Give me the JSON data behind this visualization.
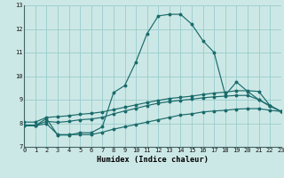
{
  "xlabel": "Humidex (Indice chaleur)",
  "bg_color": "#cce8e6",
  "grid_color": "#99cccc",
  "line_color": "#1a6b6b",
  "xlim": [
    0,
    23
  ],
  "ylim": [
    7,
    13
  ],
  "yticks": [
    7,
    8,
    9,
    10,
    11,
    12,
    13
  ],
  "xticks": [
    0,
    1,
    2,
    3,
    4,
    5,
    6,
    7,
    8,
    9,
    10,
    11,
    12,
    13,
    14,
    15,
    16,
    17,
    18,
    19,
    20,
    21,
    22,
    23
  ],
  "series": [
    {
      "x": [
        0,
        1,
        2,
        3,
        4,
        5,
        6,
        7,
        8,
        9,
        10,
        11,
        12,
        13,
        14,
        15,
        16,
        17,
        18,
        19,
        20,
        21,
        22,
        23
      ],
      "y": [
        7.9,
        7.9,
        8.2,
        7.5,
        7.5,
        7.6,
        7.6,
        7.85,
        9.3,
        9.6,
        10.6,
        11.8,
        12.55,
        12.62,
        12.62,
        12.2,
        11.5,
        11.0,
        9.2,
        9.75,
        9.35,
        9.0,
        8.75,
        8.5
      ]
    },
    {
      "x": [
        0,
        1,
        2,
        3,
        4,
        5,
        6,
        7,
        8,
        9,
        10,
        11,
        12,
        13,
        14,
        15,
        16,
        17,
        18,
        19,
        20,
        21,
        22,
        23
      ],
      "y": [
        8.05,
        8.05,
        8.25,
        8.28,
        8.32,
        8.38,
        8.42,
        8.48,
        8.58,
        8.68,
        8.78,
        8.88,
        8.97,
        9.05,
        9.1,
        9.15,
        9.22,
        9.28,
        9.32,
        9.38,
        9.38,
        9.35,
        8.75,
        8.5
      ]
    },
    {
      "x": [
        0,
        1,
        2,
        3,
        4,
        5,
        6,
        7,
        8,
        9,
        10,
        11,
        12,
        13,
        14,
        15,
        16,
        17,
        18,
        19,
        20,
        21,
        22,
        23
      ],
      "y": [
        7.92,
        7.92,
        8.08,
        8.04,
        8.08,
        8.15,
        8.18,
        8.25,
        8.4,
        8.52,
        8.63,
        8.75,
        8.85,
        8.92,
        8.97,
        9.02,
        9.08,
        9.12,
        9.15,
        9.18,
        9.18,
        9.0,
        8.72,
        8.5
      ]
    },
    {
      "x": [
        0,
        1,
        2,
        3,
        4,
        5,
        6,
        7,
        8,
        9,
        10,
        11,
        12,
        13,
        14,
        15,
        16,
        17,
        18,
        19,
        20,
        21,
        22,
        23
      ],
      "y": [
        7.9,
        7.9,
        7.98,
        7.52,
        7.52,
        7.52,
        7.52,
        7.62,
        7.75,
        7.85,
        7.95,
        8.05,
        8.15,
        8.25,
        8.35,
        8.4,
        8.48,
        8.52,
        8.55,
        8.6,
        8.62,
        8.62,
        8.55,
        8.5
      ]
    }
  ]
}
